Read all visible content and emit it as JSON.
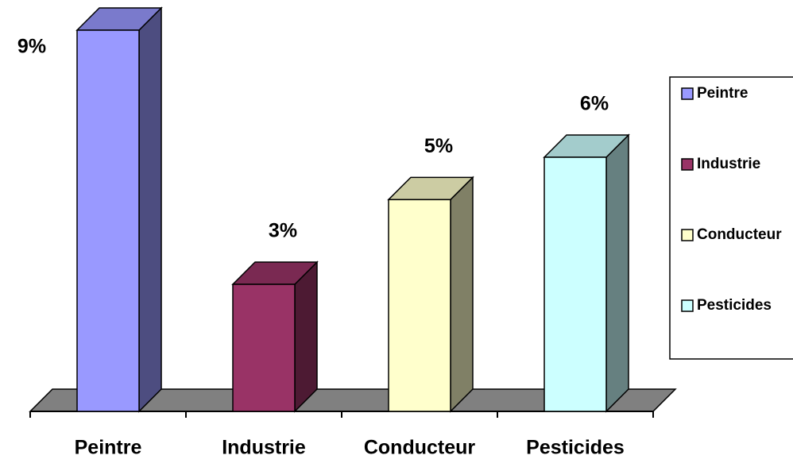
{
  "chart_data": {
    "type": "bar",
    "categories": [
      "Peintre",
      "Industrie",
      "Conducteur",
      "Pesticides"
    ],
    "series": [
      {
        "name": "Peintre",
        "color": "#9999ff"
      },
      {
        "name": "Industrie",
        "color": "#993366"
      },
      {
        "name": "Conducteur",
        "color": "#ffffcc"
      },
      {
        "name": "Pesticides",
        "color": "#ccffff"
      }
    ],
    "values": [
      9,
      3,
      5,
      6
    ],
    "value_labels": [
      "9%",
      "3%",
      "5%",
      "6%"
    ],
    "legend": "right"
  }
}
